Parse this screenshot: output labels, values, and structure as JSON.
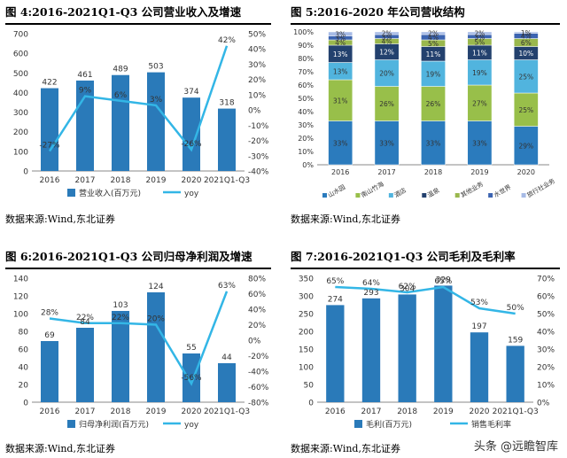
{
  "colors": {
    "bar": "#2a7ab9",
    "line": "#33b6e6",
    "stack": [
      "#2b7bbd",
      "#98bf4a",
      "#51b4de",
      "#23416e",
      "#9ab84d",
      "#3c64b1",
      "#a7bbe6"
    ]
  },
  "watermark": "头条 @远瞻智库",
  "chart_data": [
    {
      "type": "bar",
      "title": "图 4:2016-2021Q1-Q3 公司营业收入及增速",
      "source": "数据来源:Wind,东北证券",
      "categories": [
        "2016",
        "2017",
        "2018",
        "2019",
        "2020",
        "2021Q1-Q3"
      ],
      "series": [
        {
          "name": "营业收入(百万元)",
          "type": "bar",
          "axis": "left",
          "values": [
            422,
            461,
            489,
            503,
            374,
            318
          ],
          "labels": [
            "422",
            "461",
            "489",
            "503",
            "374",
            "318"
          ]
        },
        {
          "name": "yoy",
          "type": "line",
          "axis": "right",
          "values": [
            -27,
            9,
            6,
            3,
            -26,
            42
          ],
          "labels": [
            "-27%",
            "9%",
            "6%",
            "3%",
            "-26%",
            "42%"
          ]
        }
      ],
      "ylim": [
        0,
        700
      ],
      "yticks": [
        "0",
        "100",
        "200",
        "300",
        "400",
        "500",
        "600",
        "700"
      ],
      "y2lim": [
        -40,
        50
      ],
      "y2ticks": [
        "-40%",
        "-30%",
        "-20%",
        "-10%",
        "0%",
        "10%",
        "20%",
        "30%",
        "40%",
        "50%"
      ],
      "legend": "bottom"
    },
    {
      "type": "bar",
      "stacked": true,
      "title": "图 5:2016-2020 年公司营收结构",
      "source": "数据来源:Wind,东北证券",
      "categories": [
        "2016",
        "2017",
        "2018",
        "2019",
        "2020"
      ],
      "series": [
        {
          "name": "山水园",
          "values": [
            33,
            33,
            33,
            33,
            29
          ]
        },
        {
          "name": "南山竹海",
          "values": [
            31,
            26,
            26,
            27,
            25
          ]
        },
        {
          "name": "酒店",
          "values": [
            13,
            20,
            19,
            19,
            25
          ]
        },
        {
          "name": "温泉",
          "values": [
            13,
            12,
            11,
            11,
            10
          ]
        },
        {
          "name": "其他业务",
          "values": [
            4,
            4,
            5,
            5,
            6
          ]
        },
        {
          "name": "水世界",
          "values": [
            3,
            3,
            4,
            3,
            4
          ]
        },
        {
          "name": "旅行社业务",
          "values": [
            3,
            2,
            2,
            2,
            1
          ]
        }
      ],
      "ylim": [
        0,
        100
      ],
      "yticks": [
        "0%",
        "10%",
        "20%",
        "30%",
        "40%",
        "50%",
        "60%",
        "70%",
        "80%",
        "90%",
        "100%"
      ],
      "legend": "bottom"
    },
    {
      "type": "bar",
      "title": "图 6:2016-2021Q1-Q3 公司归母净利润及增速",
      "source": "数据来源:Wind,东北证券",
      "categories": [
        "2016",
        "2017",
        "2018",
        "2019",
        "2020",
        "2021Q1-Q3"
      ],
      "series": [
        {
          "name": "归母净利润(百万元)",
          "type": "bar",
          "axis": "left",
          "values": [
            69,
            84,
            103,
            124,
            55,
            44
          ],
          "labels": [
            "69",
            "84",
            "103",
            "124",
            "55",
            "44"
          ]
        },
        {
          "name": "yoy",
          "type": "line",
          "axis": "right",
          "values": [
            28,
            22,
            22,
            20,
            -56,
            63
          ],
          "labels": [
            "28%",
            "22%",
            "22%",
            "20%",
            "-56%",
            "63%"
          ]
        }
      ],
      "ylim": [
        0,
        140
      ],
      "yticks": [
        "0",
        "20",
        "40",
        "60",
        "80",
        "100",
        "120",
        "140"
      ],
      "y2lim": [
        -80,
        80
      ],
      "y2ticks": [
        "-80%",
        "-60%",
        "-40%",
        "-20%",
        "0%",
        "20%",
        "40%",
        "60%",
        "80%"
      ],
      "legend": "bottom"
    },
    {
      "type": "bar",
      "title": "图 7:2016-2021Q1-Q3 公司毛利及毛利率",
      "source": "数据来源:Wind,东北证券",
      "categories": [
        "2016",
        "2017",
        "2018",
        "2019",
        "2020",
        "2021Q1-Q3"
      ],
      "series": [
        {
          "name": "毛利(百万元)",
          "type": "bar",
          "axis": "left",
          "values": [
            274,
            293,
            304,
            329,
            197,
            159
          ],
          "labels": [
            "274",
            "293",
            "304",
            "329",
            "197",
            "159"
          ]
        },
        {
          "name": "销售毛利率",
          "type": "line",
          "axis": "right",
          "values": [
            65,
            64,
            62,
            65,
            53,
            50
          ],
          "labels": [
            "65%",
            "64%",
            "62%",
            "65%",
            "53%",
            "50%"
          ]
        }
      ],
      "ylim": [
        0,
        350
      ],
      "yticks": [
        "0",
        "50",
        "100",
        "150",
        "200",
        "250",
        "300",
        "350"
      ],
      "y2lim": [
        0,
        70
      ],
      "y2ticks": [
        "0%",
        "10%",
        "20%",
        "30%",
        "40%",
        "50%",
        "60%",
        "70%"
      ],
      "legend": "bottom"
    }
  ]
}
